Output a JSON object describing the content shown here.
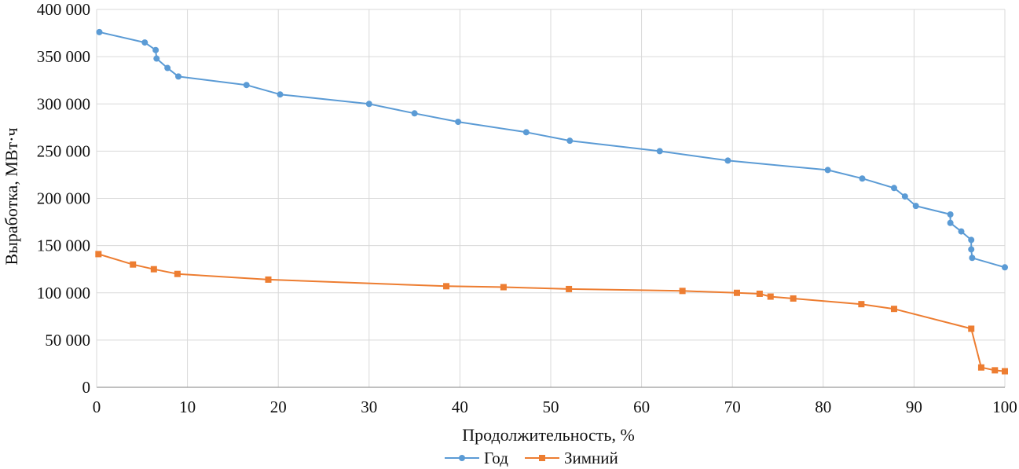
{
  "chart_data": {
    "type": "line",
    "xlabel": "Продолжительность, %",
    "ylabel": "Выработка, МВт·ч",
    "xlim": [
      0,
      100
    ],
    "ylim": [
      0,
      400000
    ],
    "grid": true,
    "legend_position": "bottom",
    "x_ticks": [
      0,
      10,
      20,
      30,
      40,
      50,
      60,
      70,
      80,
      90,
      100
    ],
    "x_tick_labels": [
      "0",
      "10",
      "20",
      "30",
      "40",
      "50",
      "60",
      "70",
      "80",
      "90",
      "100"
    ],
    "y_ticks": [
      0,
      50000,
      100000,
      150000,
      200000,
      250000,
      300000,
      350000,
      400000
    ],
    "y_tick_labels": [
      "0",
      "50 000",
      "100 000",
      "150 000",
      "200 000",
      "250 000",
      "300 000",
      "350 000",
      "400 000"
    ],
    "series": [
      {
        "name": "Год",
        "color": "#5b9bd5",
        "marker": "circle",
        "points": [
          [
            0.3,
            376000
          ],
          [
            5.3,
            365000
          ],
          [
            6.5,
            357000
          ],
          [
            6.6,
            348000
          ],
          [
            7.8,
            338000
          ],
          [
            9.0,
            329000
          ],
          [
            16.5,
            320000
          ],
          [
            20.2,
            310000
          ],
          [
            30.0,
            300000
          ],
          [
            35.0,
            290000
          ],
          [
            39.8,
            281000
          ],
          [
            47.3,
            270000
          ],
          [
            52.1,
            261000
          ],
          [
            62.0,
            250000
          ],
          [
            69.5,
            240000
          ],
          [
            80.5,
            230000
          ],
          [
            84.3,
            221000
          ],
          [
            87.8,
            211000
          ],
          [
            89.0,
            202000
          ],
          [
            90.2,
            192000
          ],
          [
            94.0,
            183000
          ],
          [
            94.0,
            174000
          ],
          [
            95.2,
            165000
          ],
          [
            96.3,
            156000
          ],
          [
            96.3,
            146000
          ],
          [
            96.4,
            137000
          ],
          [
            100.0,
            127000
          ]
        ]
      },
      {
        "name": "Зимний",
        "color": "#ed7d31",
        "marker": "square",
        "points": [
          [
            0.2,
            141000
          ],
          [
            4.0,
            130000
          ],
          [
            6.3,
            125000
          ],
          [
            8.9,
            120000
          ],
          [
            18.9,
            114000
          ],
          [
            38.5,
            107000
          ],
          [
            44.8,
            106000
          ],
          [
            52.0,
            104000
          ],
          [
            64.5,
            102000
          ],
          [
            70.5,
            100000
          ],
          [
            73.0,
            99000
          ],
          [
            74.2,
            96000
          ],
          [
            76.7,
            94000
          ],
          [
            84.2,
            88000
          ],
          [
            87.8,
            83000
          ],
          [
            96.3,
            62000
          ],
          [
            97.4,
            21000
          ],
          [
            98.9,
            18000
          ],
          [
            100.0,
            17000
          ]
        ]
      }
    ]
  }
}
